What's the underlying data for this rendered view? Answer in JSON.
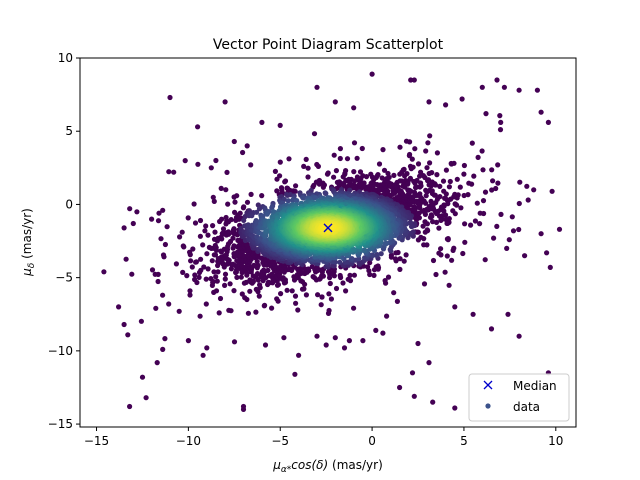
{
  "chart_data": {
    "type": "scatter",
    "title": "Vector Point Diagram Scatterplot",
    "xlabel": "μα*cos(δ) (mas/yr)",
    "ylabel": "μδ (mas/yr)",
    "xlim": [
      -15.9,
      11.1
    ],
    "ylim": [
      -15.2,
      10.0
    ],
    "xticks": [
      -15,
      -10,
      -5,
      0,
      5,
      10
    ],
    "yticks": [
      -15,
      -10,
      -5,
      0,
      5,
      10
    ],
    "grid": false,
    "legend_position": "lower right",
    "median": {
      "x": -2.4,
      "y": -1.6,
      "color": "#0000cc"
    },
    "colormap": "viridis",
    "point_color_low": "#440154",
    "series": [
      {
        "name": "Median",
        "marker": "x",
        "color": "#0000cc"
      },
      {
        "name": "data",
        "marker": "o",
        "color": "#3b528b"
      }
    ],
    "outliers": [
      [
        -11,
        7.3
      ],
      [
        -8,
        7
      ],
      [
        0,
        8.9
      ],
      [
        2.1,
        8.5
      ],
      [
        2.3,
        8.5
      ],
      [
        -3,
        8
      ],
      [
        -2,
        7
      ],
      [
        -1,
        6.6
      ],
      [
        -9.5,
        5.3
      ],
      [
        -6,
        5.6
      ],
      [
        -5,
        5.4
      ],
      [
        -7.5,
        4.3
      ],
      [
        -6.8,
        4
      ],
      [
        -8.5,
        3
      ],
      [
        -10.8,
        2.2
      ],
      [
        6,
        8
      ],
      [
        6.8,
        8.5
      ],
      [
        7.2,
        8
      ],
      [
        8,
        7.8
      ],
      [
        9,
        7.8
      ],
      [
        9.2,
        6.3
      ],
      [
        6.2,
        6.2
      ],
      [
        7,
        5.6
      ],
      [
        9.6,
        5.6
      ],
      [
        4.9,
        7.2
      ],
      [
        3.1,
        7
      ],
      [
        4,
        6.8
      ],
      [
        -13,
        -1.3
      ],
      [
        -13.5,
        -1.6
      ],
      [
        -12.8,
        -0.5
      ],
      [
        -12,
        -1
      ],
      [
        -11.4,
        -0.4
      ],
      [
        -11.6,
        -0.6
      ],
      [
        -14.6,
        -4.6
      ],
      [
        -13.8,
        -7
      ],
      [
        -13.5,
        -8.2
      ],
      [
        -13.3,
        -8.9
      ],
      [
        -13.2,
        -13.8
      ],
      [
        -12.5,
        -11.8
      ],
      [
        -12.3,
        -13.2
      ],
      [
        -11.7,
        -10.8
      ],
      [
        -11.4,
        -9.9
      ],
      [
        -10,
        -9.3
      ],
      [
        -9.2,
        -10.3
      ],
      [
        -9,
        -9.8
      ],
      [
        -7,
        -13.8
      ],
      [
        -7,
        -14
      ],
      [
        -5.8,
        -9.6
      ],
      [
        -4.8,
        -9.1
      ],
      [
        -4,
        -10.3
      ],
      [
        -4.2,
        -11.6
      ],
      [
        -3,
        -9
      ],
      [
        -2,
        -9.1
      ],
      [
        -2.5,
        -9.6
      ],
      [
        2.2,
        -11.5
      ],
      [
        2.3,
        -13.1
      ],
      [
        1.5,
        -12.5
      ],
      [
        3.1,
        -10.8
      ],
      [
        3.3,
        -13.5
      ],
      [
        2.5,
        -9.5
      ],
      [
        4.5,
        -13.9
      ],
      [
        9.6,
        -11.5
      ],
      [
        8,
        -9
      ],
      [
        6.5,
        -8.5
      ],
      [
        7.4,
        -7.5
      ],
      [
        4.5,
        -7
      ],
      [
        5.5,
        -7.5
      ],
      [
        9.5,
        -3.3
      ],
      [
        9.7,
        -4.3
      ],
      [
        10.2,
        -1.7
      ],
      [
        9.2,
        -2
      ],
      [
        8.3,
        -3.5
      ],
      [
        7.7,
        -1.8
      ],
      [
        8.5,
        0.3
      ],
      [
        9.8,
        0.9
      ],
      [
        8.8,
        1
      ],
      [
        -0.5,
        -9.3
      ],
      [
        0.2,
        -8.6
      ],
      [
        -1.5,
        -9.8
      ]
    ]
  }
}
